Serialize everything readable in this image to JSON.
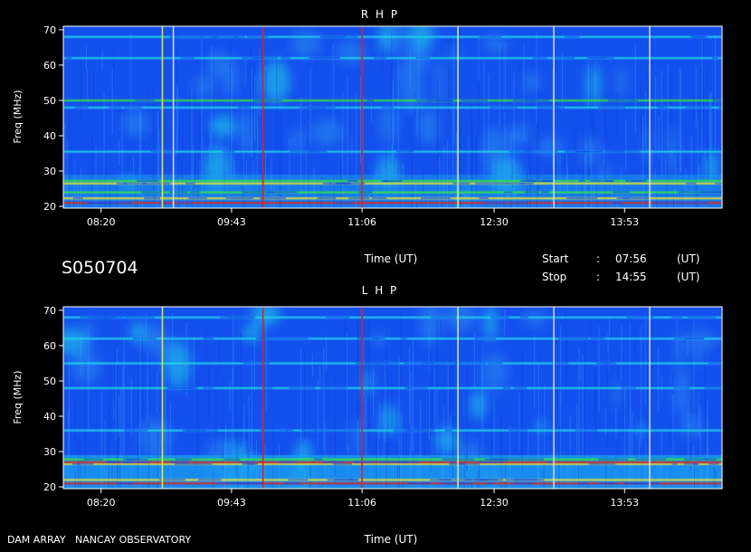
{
  "header": {
    "session_id": "S050704",
    "start_label": "Start",
    "stop_label": "Stop",
    "colon": ":",
    "start_time": "07:56",
    "stop_time": "14:55",
    "unit_label": "(UT)"
  },
  "footer": {
    "observatory": "DAM ARRAY   NANCAY OBSERVATORY"
  },
  "colors": {
    "background": "#000000",
    "base_blue": "#1450ee",
    "cyan": "#22d8e8",
    "green": "#36e83a",
    "yellow": "#f0e82a",
    "red": "#e02018"
  },
  "chart_data": [
    {
      "type": "heatmap",
      "title": "R H P",
      "xlabel": "Time (UT)",
      "ylabel": "Freq (MHz)",
      "x_ticks": [
        "08:20",
        "09:43",
        "11:06",
        "12:30",
        "13:53"
      ],
      "x_tick_minutes": [
        500,
        583,
        666,
        750,
        833
      ],
      "x_range_minutes": [
        476,
        895
      ],
      "y_ticks": [
        20,
        30,
        40,
        50,
        60,
        70
      ],
      "ylim": [
        19.5,
        71
      ],
      "vertical_lines": [
        {
          "t_min": 539,
          "color": "#f0e82a"
        },
        {
          "t_min": 546,
          "color": "#d0e0ff"
        },
        {
          "t_min": 603,
          "color": "#e02018"
        },
        {
          "t_min": 666,
          "color": "#e02018"
        },
        {
          "t_min": 727,
          "color": "#d0f0a0"
        },
        {
          "t_min": 788,
          "color": "#d0e0ff"
        },
        {
          "t_min": 849,
          "color": "#d0e0ff"
        }
      ],
      "horizontal_bands": [
        {
          "f": 21.0,
          "color": "#e02018"
        },
        {
          "f": 22.3,
          "color": "#f0e82a"
        },
        {
          "f": 24.0,
          "color": "#36e83a"
        },
        {
          "f": 26.5,
          "color": "#f0e82a"
        },
        {
          "f": 27.2,
          "color": "#36e83a"
        },
        {
          "f": 35.5,
          "color": "#22d8e8"
        },
        {
          "f": 48.0,
          "color": "#22d8e8"
        },
        {
          "f": 50.0,
          "color": "#36e83a"
        },
        {
          "f": 62.0,
          "color": "#22d8e8"
        },
        {
          "f": 68.0,
          "color": "#22d8e8"
        }
      ]
    },
    {
      "type": "heatmap",
      "title": "L H P",
      "xlabel": "Time (UT)",
      "ylabel": "Freq (MHz)",
      "x_ticks": [
        "08:20",
        "09:43",
        "11:06",
        "12:30",
        "13:53"
      ],
      "x_tick_minutes": [
        500,
        583,
        666,
        750,
        833
      ],
      "x_range_minutes": [
        476,
        895
      ],
      "y_ticks": [
        20,
        30,
        40,
        50,
        60,
        70
      ],
      "ylim": [
        19.5,
        71
      ],
      "vertical_lines": [
        {
          "t_min": 539,
          "color": "#f0e82a"
        },
        {
          "t_min": 603,
          "color": "#e02018"
        },
        {
          "t_min": 666,
          "color": "#e02018"
        },
        {
          "t_min": 727,
          "color": "#d0f0a0"
        },
        {
          "t_min": 788,
          "color": "#d0e0ff"
        },
        {
          "t_min": 849,
          "color": "#d0e0ff"
        }
      ],
      "horizontal_bands": [
        {
          "f": 21.0,
          "color": "#e02018"
        },
        {
          "f": 22.0,
          "color": "#f0e82a"
        },
        {
          "f": 26.5,
          "color": "#f0e82a"
        },
        {
          "f": 27.0,
          "color": "#e02018"
        },
        {
          "f": 27.8,
          "color": "#36e83a"
        },
        {
          "f": 36.0,
          "color": "#22d8e8"
        },
        {
          "f": 48.0,
          "color": "#22d8e8"
        },
        {
          "f": 55.0,
          "color": "#22d8e8"
        },
        {
          "f": 62.0,
          "color": "#22d8e8"
        },
        {
          "f": 68.0,
          "color": "#22d8e8"
        }
      ]
    }
  ]
}
